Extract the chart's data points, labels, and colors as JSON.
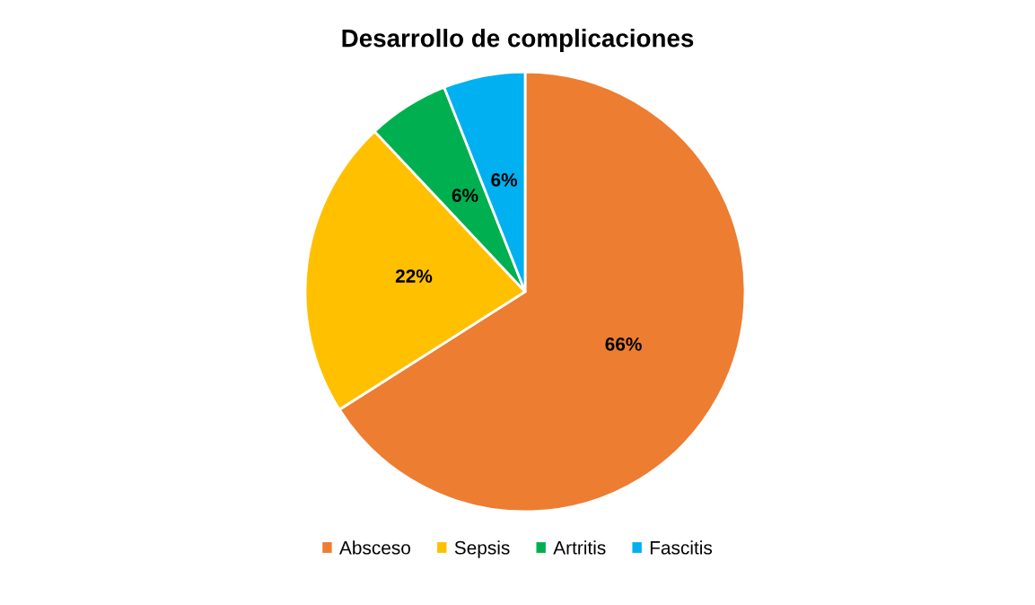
{
  "chart_data": {
    "type": "pie",
    "title": "Desarrollo de complicaciones",
    "categories": [
      "Absceso",
      "Sepsis",
      "Artritis",
      "Fascitis"
    ],
    "values": [
      66,
      22,
      6,
      6
    ],
    "colors": [
      "#ed7d31",
      "#ffc000",
      "#00b050",
      "#00b0f0"
    ],
    "value_labels": [
      "66%",
      "22%",
      "6%",
      "6%"
    ],
    "legend": "bottom"
  }
}
